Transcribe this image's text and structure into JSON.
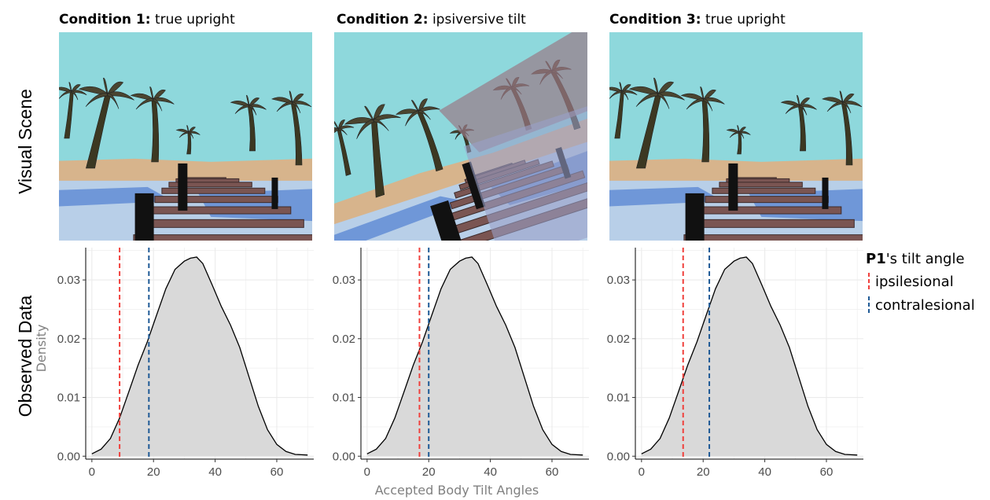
{
  "figure": {
    "row_labels": {
      "scene": "Visual Scene",
      "data": "Observed Data"
    },
    "y_axis_label": "Density",
    "x_axis_label": "Accepted Body Tilt Angles",
    "legend": {
      "title_prefix": "P1",
      "title_suffix": "'s tilt angle",
      "items": [
        {
          "label": "ipsilesional",
          "color": "#f0403c"
        },
        {
          "label": "contralesional",
          "color": "#1f5a96"
        }
      ]
    },
    "panels": [
      {
        "title_bold": "Condition 1:",
        "title_rest": " true upright",
        "scene": "upright"
      },
      {
        "title_bold": "Condition 2:",
        "title_rest": " ipsiversive tilt",
        "scene": "tilted"
      },
      {
        "title_bold": "Condition 3:",
        "title_rest": " true upright",
        "scene": "upright"
      }
    ]
  },
  "chart_data": [
    {
      "type": "area",
      "title": "Condition 1: true upright",
      "xlabel": "Accepted Body Tilt Angles",
      "ylabel": "Density",
      "xlim": [
        -2,
        72
      ],
      "ylim": [
        -0.0005,
        0.0355
      ],
      "xticks": [
        0,
        20,
        40,
        60
      ],
      "yticks": [
        0.0,
        0.01,
        0.02,
        0.03
      ],
      "density_x": [
        0,
        3,
        6,
        9,
        12,
        15,
        18,
        21,
        24,
        27,
        30,
        32,
        34,
        36,
        39,
        42,
        45,
        48,
        51,
        54,
        57,
        60,
        63,
        66,
        70
      ],
      "density_y": [
        0.0004,
        0.0012,
        0.003,
        0.0065,
        0.011,
        0.0155,
        0.0195,
        0.024,
        0.0285,
        0.0318,
        0.0332,
        0.0337,
        0.0339,
        0.0328,
        0.0292,
        0.0255,
        0.0223,
        0.0185,
        0.0135,
        0.0085,
        0.0045,
        0.002,
        0.0008,
        0.0003,
        0.0002
      ],
      "vlines": [
        {
          "name": "ipsilesional",
          "x": 9
        },
        {
          "name": "contralesional",
          "x": 18.5
        }
      ],
      "grid": true
    },
    {
      "type": "area",
      "title": "Condition 2: ipsiversive tilt",
      "xlabel": "Accepted Body Tilt Angles",
      "ylabel": "Density",
      "xlim": [
        -2,
        72
      ],
      "ylim": [
        -0.0005,
        0.0355
      ],
      "xticks": [
        0,
        20,
        40,
        60
      ],
      "yticks": [
        0.0,
        0.01,
        0.02,
        0.03
      ],
      "density_x": [
        0,
        3,
        6,
        9,
        12,
        15,
        18,
        21,
        24,
        27,
        30,
        32,
        34,
        36,
        39,
        42,
        45,
        48,
        51,
        54,
        57,
        60,
        63,
        66,
        70
      ],
      "density_y": [
        0.0004,
        0.0012,
        0.003,
        0.0065,
        0.011,
        0.0155,
        0.0195,
        0.024,
        0.0285,
        0.0318,
        0.0332,
        0.0337,
        0.0339,
        0.0328,
        0.0292,
        0.0255,
        0.0223,
        0.0185,
        0.0135,
        0.0085,
        0.0045,
        0.002,
        0.0008,
        0.0003,
        0.0002
      ],
      "vlines": [
        {
          "name": "ipsilesional",
          "x": 17
        },
        {
          "name": "contralesional",
          "x": 20
        }
      ],
      "grid": true
    },
    {
      "type": "area",
      "title": "Condition 3: true upright",
      "xlabel": "Accepted Body Tilt Angles",
      "ylabel": "Density",
      "xlim": [
        -2,
        72
      ],
      "ylim": [
        -0.0005,
        0.0355
      ],
      "xticks": [
        0,
        20,
        40,
        60
      ],
      "yticks": [
        0.0,
        0.01,
        0.02,
        0.03
      ],
      "density_x": [
        0,
        3,
        6,
        9,
        12,
        15,
        18,
        21,
        24,
        27,
        30,
        32,
        34,
        36,
        39,
        42,
        45,
        48,
        51,
        54,
        57,
        60,
        63,
        66,
        70
      ],
      "density_y": [
        0.0004,
        0.0012,
        0.003,
        0.0065,
        0.011,
        0.0155,
        0.0195,
        0.024,
        0.0285,
        0.0318,
        0.0332,
        0.0337,
        0.0339,
        0.0328,
        0.0292,
        0.0255,
        0.0223,
        0.0185,
        0.0135,
        0.0085,
        0.0045,
        0.002,
        0.0008,
        0.0003,
        0.0002
      ],
      "vlines": [
        {
          "name": "ipsilesional",
          "x": 13.5
        },
        {
          "name": "contralesional",
          "x": 22
        }
      ],
      "grid": true
    }
  ],
  "colors": {
    "sky": "#8ed8dc",
    "sand": "#d7b48c",
    "water_light": "#b8cfe8",
    "water_mid": "#6f97d8",
    "water_deep": "#9aa0c8",
    "plank": "#7a5552",
    "plank_dark": "#3e2c2b",
    "post": "#111111",
    "trunk": "#3c3822",
    "frond": "#4a4530",
    "area_fill": "#d9d9d9",
    "grid": "#ebebeb",
    "axis_text": "#4d4d4d",
    "label_text": "#808080"
  }
}
